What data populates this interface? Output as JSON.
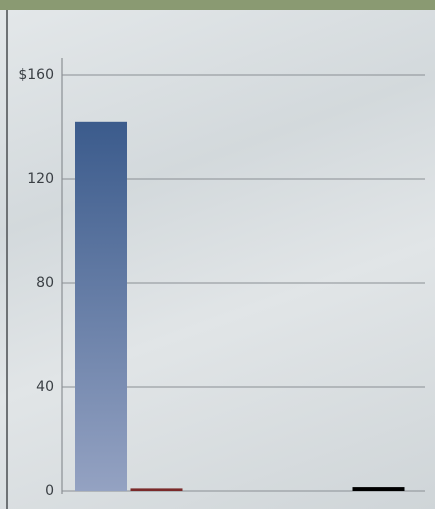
{
  "chart_data": {
    "type": "bar",
    "categories": [
      null,
      null,
      null,
      null,
      null,
      null
    ],
    "values": [
      142,
      1,
      null,
      null,
      null,
      1.5
    ],
    "colors": [
      "#3b5b8c",
      "#7a2a2a",
      "#4a3f66",
      null,
      null,
      null
    ],
    "ylim": [
      0,
      160
    ],
    "yticks": [
      0,
      40,
      80,
      120,
      {
        "value": 160,
        "label": "$160"
      }
    ],
    "grid": true
  }
}
